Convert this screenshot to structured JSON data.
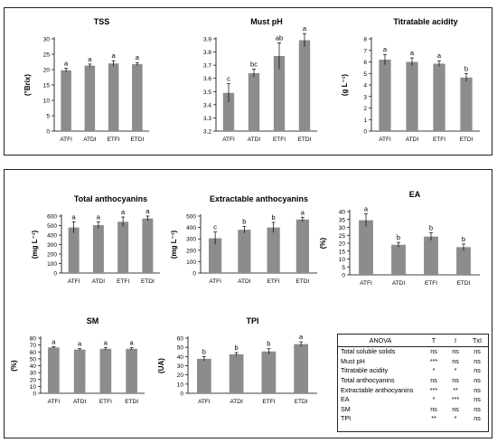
{
  "chart_data": [
    {
      "id": "tss",
      "type": "bar",
      "title": "TSS",
      "ylabel": "(°Brix)",
      "categories": [
        "ATFI",
        "ATDI",
        "ETFI",
        "ETDI"
      ],
      "values": [
        19.8,
        21.3,
        22.0,
        21.8
      ],
      "errors": [
        0.6,
        0.5,
        0.9,
        0.5
      ],
      "letters": [
        "a",
        "a",
        "a",
        "a"
      ],
      "ylim": [
        0,
        30
      ],
      "yticks": [
        0,
        5,
        10,
        15,
        20,
        25,
        30
      ]
    },
    {
      "id": "ph",
      "type": "bar",
      "title": "Must pH",
      "ylabel": "",
      "categories": [
        "ATFI",
        "ATDI",
        "ETFI",
        "ETDI"
      ],
      "values": [
        3.49,
        3.64,
        3.77,
        3.89
      ],
      "errors": [
        0.07,
        0.03,
        0.1,
        0.05
      ],
      "letters": [
        "c",
        "bc",
        "ab",
        "a"
      ],
      "ylim": [
        3.2,
        3.9
      ],
      "yticks": [
        3.2,
        3.3,
        3.4,
        3.5,
        3.6,
        3.7,
        3.8,
        3.9
      ]
    },
    {
      "id": "ta",
      "type": "bar",
      "title": "Titratable acidity",
      "ylabel": "(g L⁻¹)",
      "categories": [
        "ATFI",
        "ATDI",
        "ETFI",
        "ETDI"
      ],
      "values": [
        6.2,
        6.0,
        5.85,
        4.65
      ],
      "errors": [
        0.45,
        0.35,
        0.25,
        0.35
      ],
      "letters": [
        "a",
        "a",
        "a",
        "b"
      ],
      "ylim": [
        0,
        8
      ],
      "yticks": [
        0,
        1,
        2,
        3,
        4,
        5,
        6,
        7,
        8
      ]
    },
    {
      "id": "tant",
      "type": "bar",
      "title": "Total anthocyanins",
      "ylabel": "(mg L⁻¹)",
      "categories": [
        "ATFI",
        "ATDI",
        "ETFI",
        "ETDI"
      ],
      "values": [
        480,
        505,
        540,
        575
      ],
      "errors": [
        60,
        35,
        50,
        25
      ],
      "letters": [
        "a",
        "a",
        "a",
        "a"
      ],
      "ylim": [
        0,
        600
      ],
      "yticks": [
        0,
        100,
        200,
        300,
        400,
        500,
        600
      ]
    },
    {
      "id": "eant",
      "type": "bar",
      "title": "Extractable anthocyanins",
      "ylabel": "(mg L⁻¹)",
      "categories": [
        "ATFI",
        "ATDI",
        "ETFI",
        "ETDI"
      ],
      "values": [
        305,
        380,
        400,
        470
      ],
      "errors": [
        55,
        30,
        45,
        20
      ],
      "letters": [
        "c",
        "b",
        "b",
        "a"
      ],
      "ylim": [
        0,
        500
      ],
      "yticks": [
        0,
        100,
        200,
        300,
        400,
        500
      ]
    },
    {
      "id": "ea",
      "type": "bar",
      "title": "EA",
      "ylabel": "(%)",
      "categories": [
        "ATFI",
        "ATDI",
        "ETFI",
        "ETDI"
      ],
      "values": [
        34.5,
        19.0,
        24.2,
        17.5
      ],
      "errors": [
        4.0,
        1.5,
        2.5,
        2.0
      ],
      "letters": [
        "a",
        "b",
        "b",
        "b"
      ],
      "ylim": [
        0,
        40
      ],
      "yticks": [
        0,
        5,
        10,
        15,
        20,
        25,
        30,
        35,
        40
      ]
    },
    {
      "id": "sm",
      "type": "bar",
      "title": "SM",
      "ylabel": "(%)",
      "categories": [
        "ATFI",
        "ATDI",
        "ETFI",
        "ETDI"
      ],
      "values": [
        66.5,
        63.5,
        64.5,
        64.5
      ],
      "errors": [
        1.0,
        1.2,
        1.5,
        1.5
      ],
      "letters": [
        "a",
        "a",
        "a",
        "a"
      ],
      "ylim": [
        0,
        80
      ],
      "yticks": [
        0,
        10,
        20,
        30,
        40,
        50,
        60,
        70,
        80
      ]
    },
    {
      "id": "tpi",
      "type": "bar",
      "title": "TPI",
      "ylabel": "(UA)",
      "categories": [
        "ATFI",
        "ATDI",
        "ETFI",
        "ETDI"
      ],
      "values": [
        37.5,
        42.5,
        45.5,
        53.5
      ],
      "errors": [
        2.5,
        1.8,
        3.0,
        2.5
      ],
      "letters": [
        "b",
        "b",
        "b",
        "a"
      ],
      "ylim": [
        0,
        60
      ],
      "yticks": [
        0,
        10,
        20,
        30,
        40,
        50,
        60
      ]
    }
  ],
  "anova": {
    "headers": [
      "ANOVA",
      "T",
      "I",
      "TxI"
    ],
    "rows": [
      {
        "label": "Total soluble solids",
        "T": "ns",
        "I": "ns",
        "TxI": "ns"
      },
      {
        "label": "Must pH",
        "T": "***",
        "I": "ns",
        "TxI": "ns"
      },
      {
        "label": "Titratable acidity",
        "T": "*",
        "I": "*",
        "TxI": "ns"
      },
      {
        "label": "Total anthocyanins",
        "T": "ns",
        "I": "ns",
        "TxI": "ns"
      },
      {
        "label": "Extractable anthocyanins",
        "T": "***",
        "I": "**",
        "TxI": "ns"
      },
      {
        "label": "EA",
        "T": "*",
        "I": "***",
        "TxI": "ns"
      },
      {
        "label": "SM",
        "T": "ns",
        "I": "ns",
        "TxI": "ns"
      },
      {
        "label": "TPI",
        "T": "**",
        "I": "*",
        "TxI": "ns"
      }
    ]
  },
  "colors": {
    "bar": "#8c8c8c",
    "axis": "#000000",
    "error": "#000000"
  }
}
